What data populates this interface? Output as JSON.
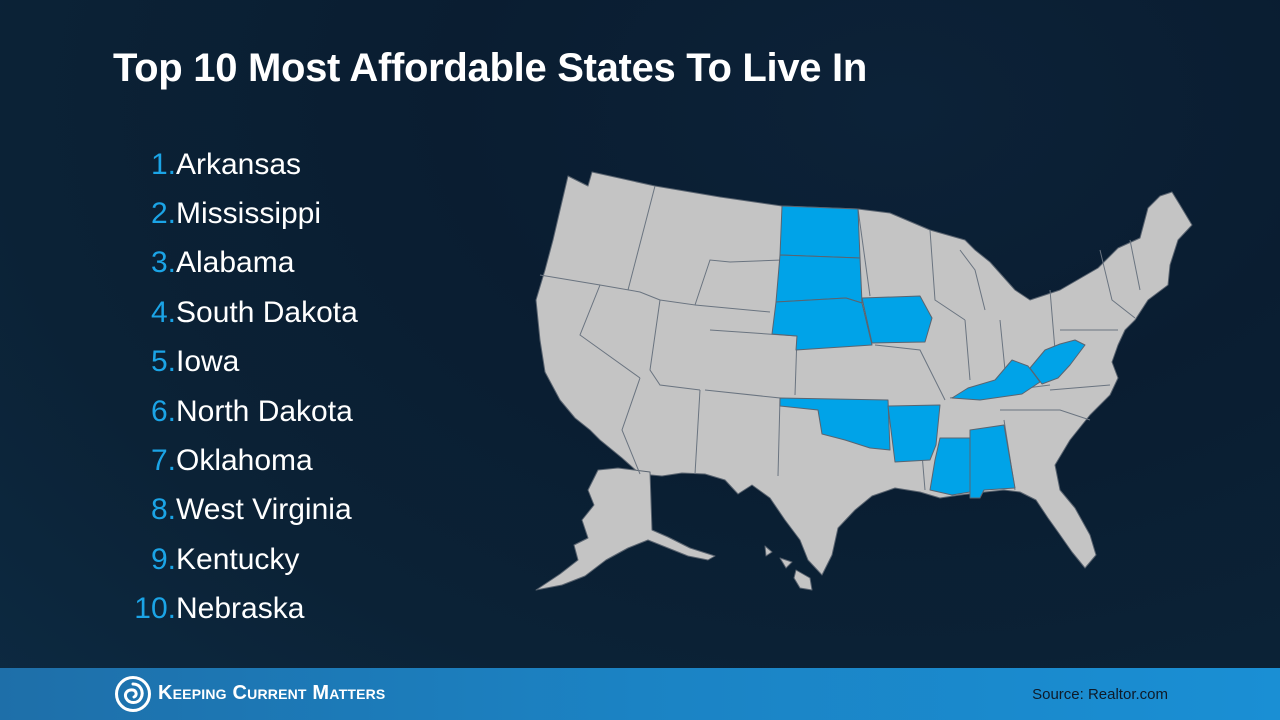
{
  "slide": {
    "title": "Top 10 Most Affordable States To Live In",
    "list": [
      {
        "number": "1.",
        "state": "Arkansas"
      },
      {
        "number": "2.",
        "state": "Mississippi"
      },
      {
        "number": "3.",
        "state": "Alabama"
      },
      {
        "number": "4.",
        "state": "South Dakota"
      },
      {
        "number": "5.",
        "state": "Iowa"
      },
      {
        "number": "6.",
        "state": "North Dakota"
      },
      {
        "number": "7.",
        "state": "Oklahoma"
      },
      {
        "number": "8.",
        "state": "West Virginia"
      },
      {
        "number": "9.",
        "state": "Kentucky"
      },
      {
        "number": "10.",
        "state": "Nebraska"
      }
    ]
  },
  "map": {
    "highlighted_states": [
      "Arkansas",
      "Mississippi",
      "Alabama",
      "South Dakota",
      "Iowa",
      "North Dakota",
      "Oklahoma",
      "West Virginia",
      "Kentucky",
      "Nebraska"
    ],
    "highlight_color": "#00a3e8",
    "base_color": "#c4c4c4",
    "border_color": "#5a6470"
  },
  "footer": {
    "brand": "Keeping Current Matters",
    "source": "Source: Realtor.com"
  },
  "colors": {
    "background": "#0b1e33",
    "title": "#ffffff",
    "number": "#1ba4e6",
    "footer_bar": "#1b83c4"
  },
  "icons": {
    "logo": "kcm-swirl-logo-icon"
  }
}
